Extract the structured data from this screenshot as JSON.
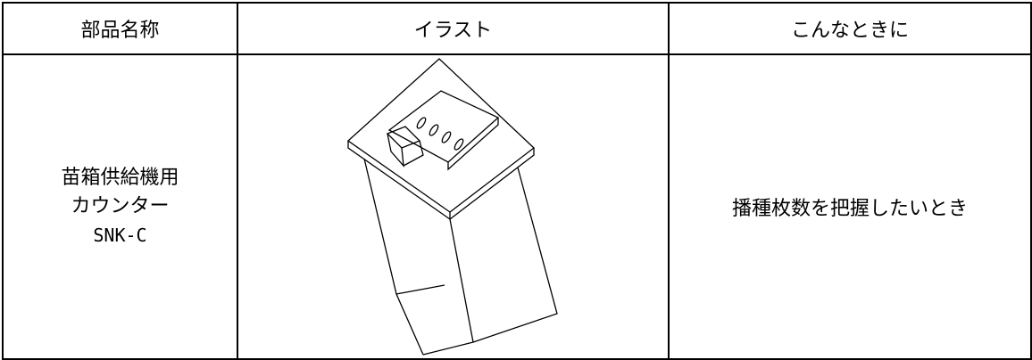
{
  "table": {
    "header": [
      "部品名称",
      "イラスト",
      "こんなときに"
    ],
    "rows": [
      {
        "name_lines": [
          "苗箱供給機用",
          "カウンター",
          "SNK-C"
        ],
        "usage": "播種枚数を把握したいとき"
      }
    ]
  }
}
